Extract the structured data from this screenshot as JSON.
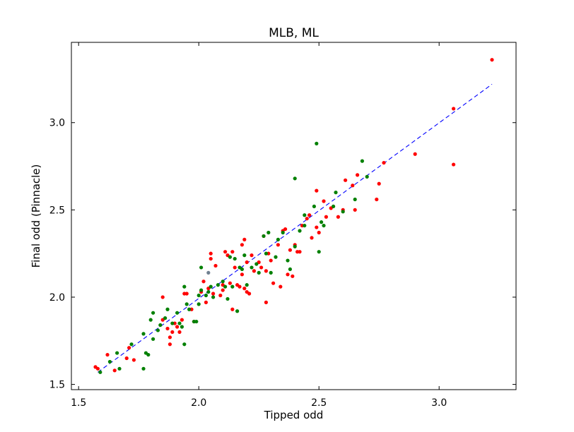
{
  "chart_data": {
    "type": "scatter",
    "title": "MLB, ML",
    "xlabel": "Tipped odd",
    "ylabel": "Final odd (Pinnacle)",
    "xlim": [
      1.47,
      3.32
    ],
    "ylim": [
      1.47,
      3.46
    ],
    "xticks": [
      "1.5",
      "2.0",
      "2.5",
      "3.0"
    ],
    "yticks": [
      "1.5",
      "2.0",
      "2.5",
      "3.0"
    ],
    "grid": false,
    "colors": {
      "red": "#ff0000",
      "green": "#008000",
      "gray": "#708090",
      "fit": "#0000ff"
    },
    "fit_line": {
      "style": "dashed",
      "x": [
        1.58,
        3.22
      ],
      "y": [
        1.57,
        3.22
      ]
    },
    "series": [
      {
        "color": "red",
        "points": [
          [
            1.57,
            1.6
          ],
          [
            1.58,
            1.59
          ],
          [
            1.62,
            1.67
          ],
          [
            1.65,
            1.58
          ],
          [
            1.7,
            1.65
          ],
          [
            1.71,
            1.71
          ],
          [
            1.73,
            1.64
          ],
          [
            1.85,
            2.0
          ],
          [
            1.85,
            1.87
          ],
          [
            1.87,
            1.82
          ],
          [
            1.88,
            1.77
          ],
          [
            1.88,
            1.73
          ],
          [
            1.89,
            1.8
          ],
          [
            1.9,
            1.85
          ],
          [
            1.91,
            1.83
          ],
          [
            1.92,
            1.8
          ],
          [
            1.93,
            1.87
          ],
          [
            1.94,
            2.02
          ],
          [
            1.95,
            2.02
          ],
          [
            1.97,
            1.93
          ],
          [
            1.98,
            1.86
          ],
          [
            2.01,
            2.03
          ],
          [
            2.02,
            2.09
          ],
          [
            2.03,
            1.97
          ],
          [
            2.04,
            2.05
          ],
          [
            2.05,
            2.25
          ],
          [
            2.05,
            2.22
          ],
          [
            2.06,
            2.02
          ],
          [
            2.07,
            2.18
          ],
          [
            2.09,
            2.01
          ],
          [
            2.1,
            2.07
          ],
          [
            2.1,
            2.04
          ],
          [
            2.11,
            2.26
          ],
          [
            2.12,
            2.24
          ],
          [
            2.13,
            2.08
          ],
          [
            2.14,
            2.26
          ],
          [
            2.14,
            1.93
          ],
          [
            2.15,
            2.17
          ],
          [
            2.16,
            2.07
          ],
          [
            2.17,
            2.06
          ],
          [
            2.18,
            2.3
          ],
          [
            2.18,
            2.13
          ],
          [
            2.19,
            2.33
          ],
          [
            2.19,
            2.05
          ],
          [
            2.2,
            2.2
          ],
          [
            2.2,
            2.03
          ],
          [
            2.21,
            2.02
          ],
          [
            2.22,
            2.24
          ],
          [
            2.23,
            2.15
          ],
          [
            2.25,
            2.2
          ],
          [
            2.26,
            2.17
          ],
          [
            2.27,
            2.35
          ],
          [
            2.28,
            1.97
          ],
          [
            2.28,
            2.15
          ],
          [
            2.29,
            2.25
          ],
          [
            2.3,
            2.21
          ],
          [
            2.31,
            2.08
          ],
          [
            2.33,
            2.3
          ],
          [
            2.34,
            2.06
          ],
          [
            2.35,
            2.38
          ],
          [
            2.36,
            2.39
          ],
          [
            2.37,
            2.13
          ],
          [
            2.38,
            2.27
          ],
          [
            2.39,
            2.12
          ],
          [
            2.4,
            2.3
          ],
          [
            2.41,
            2.26
          ],
          [
            2.42,
            2.26
          ],
          [
            2.43,
            2.41
          ],
          [
            2.45,
            2.45
          ],
          [
            2.46,
            2.47
          ],
          [
            2.47,
            2.34
          ],
          [
            2.49,
            2.61
          ],
          [
            2.49,
            2.4
          ],
          [
            2.5,
            2.37
          ],
          [
            2.52,
            2.55
          ],
          [
            2.53,
            2.46
          ],
          [
            2.55,
            2.51
          ],
          [
            2.58,
            2.46
          ],
          [
            2.6,
            2.5
          ],
          [
            2.61,
            2.67
          ],
          [
            2.64,
            2.64
          ],
          [
            2.65,
            2.5
          ],
          [
            2.66,
            2.7
          ],
          [
            2.74,
            2.56
          ],
          [
            2.75,
            2.65
          ],
          [
            2.77,
            2.77
          ],
          [
            2.9,
            2.82
          ],
          [
            3.06,
            3.08
          ],
          [
            3.06,
            2.76
          ],
          [
            3.22,
            3.36
          ]
        ]
      },
      {
        "color": "green",
        "points": [
          [
            1.59,
            1.57
          ],
          [
            1.63,
            1.63
          ],
          [
            1.66,
            1.68
          ],
          [
            1.67,
            1.59
          ],
          [
            1.72,
            1.73
          ],
          [
            1.77,
            1.59
          ],
          [
            1.77,
            1.79
          ],
          [
            1.78,
            1.68
          ],
          [
            1.79,
            1.67
          ],
          [
            1.8,
            1.87
          ],
          [
            1.81,
            1.76
          ],
          [
            1.81,
            1.91
          ],
          [
            1.83,
            1.81
          ],
          [
            1.84,
            1.84
          ],
          [
            1.86,
            1.88
          ],
          [
            1.87,
            1.93
          ],
          [
            1.89,
            1.85
          ],
          [
            1.91,
            1.91
          ],
          [
            1.92,
            1.85
          ],
          [
            1.93,
            1.83
          ],
          [
            1.94,
            1.73
          ],
          [
            1.94,
            2.06
          ],
          [
            1.95,
            1.96
          ],
          [
            1.96,
            1.93
          ],
          [
            1.98,
            1.86
          ],
          [
            1.99,
            1.86
          ],
          [
            2.0,
            2.01
          ],
          [
            2.0,
            1.96
          ],
          [
            2.01,
            2.17
          ],
          [
            2.01,
            2.04
          ],
          [
            2.03,
            2.01
          ],
          [
            2.04,
            2.03
          ],
          [
            2.05,
            2.06
          ],
          [
            2.06,
            2.0
          ],
          [
            2.08,
            2.07
          ],
          [
            2.1,
            2.09
          ],
          [
            2.11,
            2.06
          ],
          [
            2.12,
            1.99
          ],
          [
            2.13,
            2.23
          ],
          [
            2.14,
            2.06
          ],
          [
            2.15,
            2.22
          ],
          [
            2.16,
            1.92
          ],
          [
            2.17,
            2.17
          ],
          [
            2.18,
            2.16
          ],
          [
            2.19,
            2.24
          ],
          [
            2.2,
            2.07
          ],
          [
            2.22,
            2.17
          ],
          [
            2.24,
            2.19
          ],
          [
            2.25,
            2.14
          ],
          [
            2.27,
            2.35
          ],
          [
            2.28,
            2.25
          ],
          [
            2.29,
            2.37
          ],
          [
            2.3,
            2.14
          ],
          [
            2.32,
            2.23
          ],
          [
            2.33,
            2.33
          ],
          [
            2.35,
            2.37
          ],
          [
            2.37,
            2.21
          ],
          [
            2.38,
            2.16
          ],
          [
            2.4,
            2.29
          ],
          [
            2.4,
            2.68
          ],
          [
            2.42,
            2.38
          ],
          [
            2.44,
            2.41
          ],
          [
            2.44,
            2.47
          ],
          [
            2.48,
            2.52
          ],
          [
            2.49,
            2.88
          ],
          [
            2.5,
            2.26
          ],
          [
            2.51,
            2.43
          ],
          [
            2.52,
            2.41
          ],
          [
            2.56,
            2.52
          ],
          [
            2.57,
            2.6
          ],
          [
            2.6,
            2.49
          ],
          [
            2.65,
            2.56
          ],
          [
            2.68,
            2.78
          ],
          [
            2.7,
            2.69
          ]
        ]
      },
      {
        "color": "gray",
        "points": [
          [
            2.04,
            2.14
          ]
        ]
      }
    ]
  }
}
